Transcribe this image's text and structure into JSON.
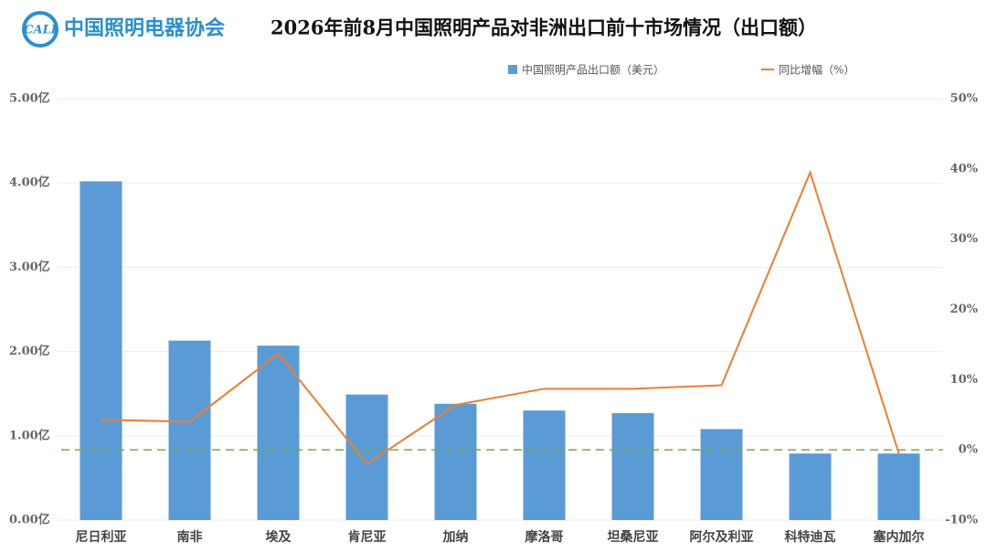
{
  "logo": {
    "mark": "CALI",
    "text": "中国照明电器协会"
  },
  "chart_data": {
    "type": "bar-line",
    "title": "2026年前8月中国照明产品对非洲出口前十市场情况（出口额）",
    "categories": [
      "尼日利亚",
      "南非",
      "埃及",
      "肯尼亚",
      "加纳",
      "摩洛哥",
      "坦桑尼亚",
      "阿尔及利亚",
      "科特迪瓦",
      "塞内加尔"
    ],
    "series": [
      {
        "name": "中国照明产品出口额（美元）",
        "type": "bar",
        "color": "#5b9bd5",
        "values": [
          4.02,
          2.13,
          2.07,
          1.49,
          1.38,
          1.3,
          1.27,
          1.08,
          0.79,
          0.79
        ]
      },
      {
        "name": "同比增幅（%）",
        "type": "line",
        "axis": "y2",
        "color": "#ed7d31",
        "values": [
          4.3,
          4.0,
          13.7,
          -2.0,
          6.4,
          8.7,
          8.7,
          9.2,
          39.5,
          -0.5
        ]
      }
    ],
    "ylim": [
      0,
      5
    ],
    "yticks": [
      {
        "value": 0,
        "label": "0.00亿"
      },
      {
        "value": 1,
        "label": "1.00亿"
      },
      {
        "value": 2,
        "label": "2.00亿"
      },
      {
        "value": 3,
        "label": "3.00亿"
      },
      {
        "value": 4,
        "label": "4.00亿"
      },
      {
        "value": 5,
        "label": "5.00亿"
      }
    ],
    "y2lim": [
      -10,
      50
    ],
    "y2ticks": [
      {
        "value": -10,
        "label": "-10%"
      },
      {
        "value": 0,
        "label": "0%"
      },
      {
        "value": 10,
        "label": "10%"
      },
      {
        "value": 20,
        "label": "20%"
      },
      {
        "value": 30,
        "label": "30%"
      },
      {
        "value": 40,
        "label": "40%"
      },
      {
        "value": 50,
        "label": "50%"
      }
    ],
    "reference_line": {
      "axis": "y2",
      "value": 0,
      "color": "#70ad47"
    },
    "grid": true,
    "legend": "top"
  }
}
